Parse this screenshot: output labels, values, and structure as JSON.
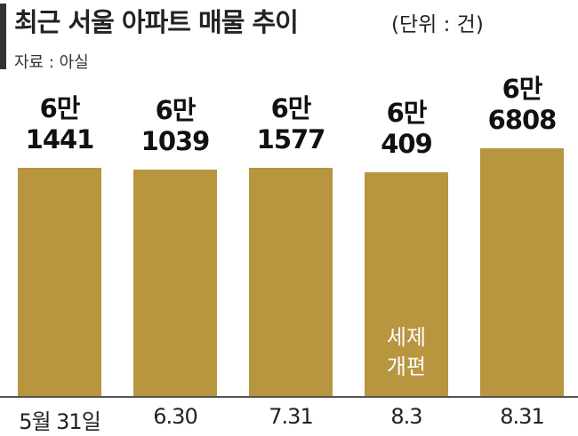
{
  "chart_data": {
    "type": "bar",
    "title": "최근 서울 아파트 매물 추이",
    "subtitle": "(단위 : 건)",
    "source": "자료 : 아실",
    "categories": [
      "5월 31일",
      "6.30",
      "7.31",
      "8.3",
      "8.31"
    ],
    "values": [
      61441,
      61039,
      61577,
      60409,
      66808
    ],
    "value_labels": [
      "6만\n1441",
      "6만\n1039",
      "6만\n1577",
      "6만\n409",
      "6만\n6808"
    ],
    "color": "#b8953f",
    "annotations": [
      {
        "text": "세제\n개편",
        "category_index": 3
      }
    ]
  }
}
